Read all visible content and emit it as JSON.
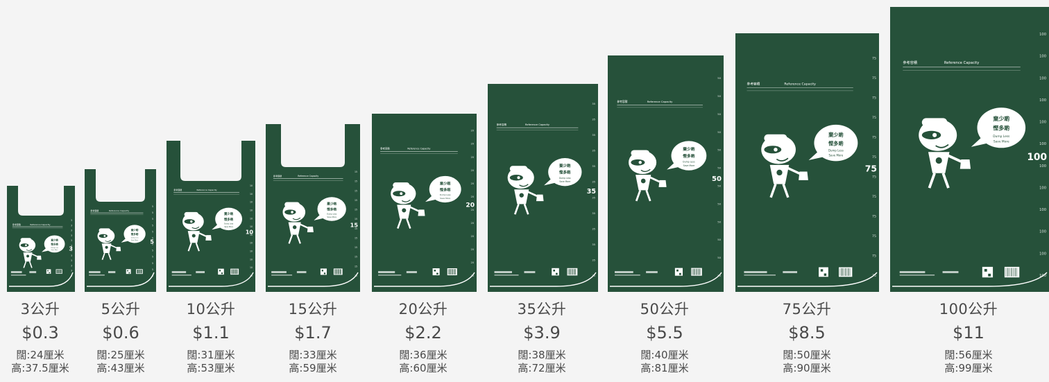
{
  "colors": {
    "bag": "#26513a",
    "print": "#ffffff",
    "text": "#4a4a4a",
    "background": "#f4f4f4"
  },
  "bag_print": {
    "reference_zh": "參考容積",
    "reference_en": "Reference Capacity",
    "slogan_zh_line1": "棄少啲",
    "slogan_zh_line2": "慳多啲",
    "slogan_en_line1": "Dump Less",
    "slogan_en_line2": "Save More"
  },
  "bags": [
    {
      "capacity": "3公升",
      "price": "$0.3",
      "width": "闊:24厘米",
      "height": "高:37.5厘米",
      "scale_mark": "3"
    },
    {
      "capacity": "5公升",
      "price": "$0.6",
      "width": "闊:25厘米",
      "height": "高:43厘米",
      "scale_mark": "5"
    },
    {
      "capacity": "10公升",
      "price": "$1.1",
      "width": "闊:31厘米",
      "height": "高:53厘米",
      "scale_mark": "10"
    },
    {
      "capacity": "15公升",
      "price": "$1.7",
      "width": "闊:33厘米",
      "height": "高:59厘米",
      "scale_mark": "15"
    },
    {
      "capacity": "20公升",
      "price": "$2.2",
      "width": "闊:36厘米",
      "height": "高:60厘米",
      "scale_mark": "20"
    },
    {
      "capacity": "35公升",
      "price": "$3.9",
      "width": "闊:38厘米",
      "height": "高:72厘米",
      "scale_mark": "35"
    },
    {
      "capacity": "50公升",
      "price": "$5.5",
      "width": "闊:40厘米",
      "height": "高:81厘米",
      "scale_mark": "50"
    },
    {
      "capacity": "75公升",
      "price": "$8.5",
      "width": "闊:50厘米",
      "height": "高:90厘米",
      "scale_mark": "75"
    },
    {
      "capacity": "100公升",
      "price": "$11",
      "width": "闊:56厘米",
      "height": "高:99厘米",
      "scale_mark": "100"
    }
  ]
}
